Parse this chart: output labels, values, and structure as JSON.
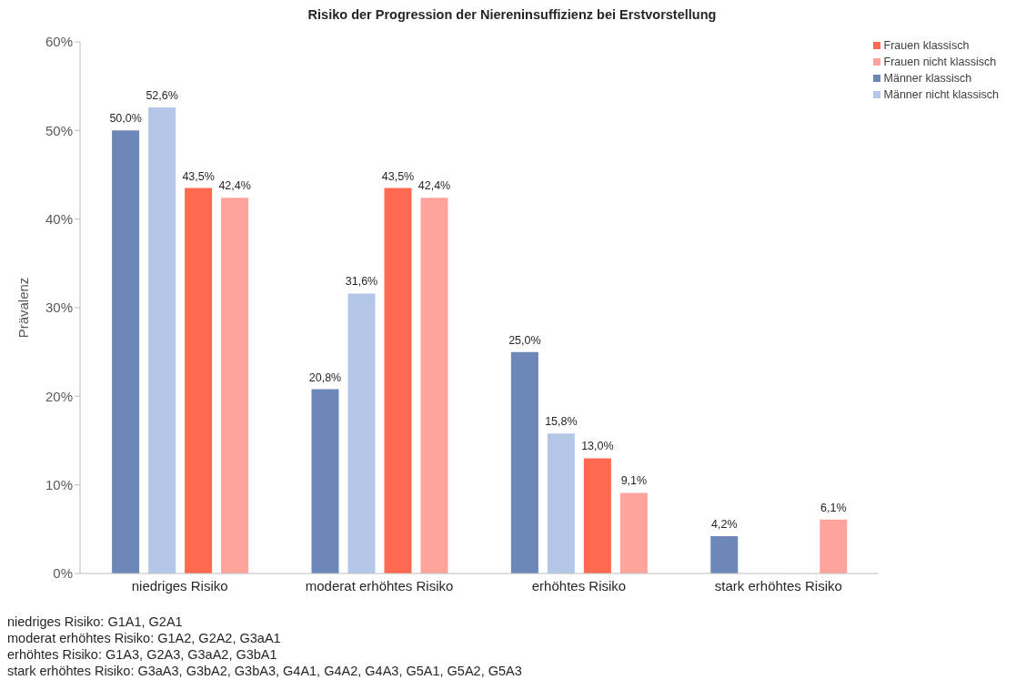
{
  "chart_data": {
    "type": "bar",
    "title": "Risiko der Progression der Niereninsuffizienz bei Erstvorstellung",
    "ylabel": "Prävalenz",
    "categories": [
      "niedriges Risiko",
      "moderat erhöhtes Risiko",
      "erhöhtes Risiko",
      "stark erhöhtes Risiko"
    ],
    "series": [
      {
        "name": "Männer klassisch",
        "color": "#6b88b8",
        "values": [
          50.0,
          20.8,
          25.0,
          4.2
        ],
        "value_labels": [
          "50,0%",
          "20,8%",
          "25,0%",
          "4,2%"
        ]
      },
      {
        "name": "Männer nicht klassisch",
        "color": "#b4c7e7",
        "values": [
          52.6,
          31.6,
          15.8,
          null
        ],
        "value_labels": [
          "52,6%",
          "31,6%",
          "15,8%",
          null
        ]
      },
      {
        "name": "Frauen klassisch",
        "color": "#fe6a4f",
        "values": [
          43.5,
          43.5,
          13.0,
          null
        ],
        "value_labels": [
          "43,5%",
          "43,5%",
          "13,0%",
          null
        ]
      },
      {
        "name": "Frauen nicht klassisch",
        "color": "#ffa49c",
        "values": [
          42.4,
          42.4,
          9.1,
          6.1
        ],
        "value_labels": [
          "42,4%",
          "42,4%",
          "9,1%",
          "6,1%"
        ]
      }
    ],
    "ylim": [
      0,
      60
    ],
    "yticks": [
      {
        "value": 0,
        "label": "0%"
      },
      {
        "value": 10,
        "label": "10%"
      },
      {
        "value": 20,
        "label": "20%"
      },
      {
        "value": 30,
        "label": "30%"
      },
      {
        "value": 40,
        "label": "40%"
      },
      {
        "value": 50,
        "label": "50%"
      },
      {
        "value": 60,
        "label": "60%"
      }
    ],
    "legend": "top right",
    "annotations": [
      "niedriges Risiko: G1A1, G2A1",
      "moderat erhöhtes Risiko: G1A2, G2A2, G3aA1",
      "erhöhtes Risiko: G1A3, G2A3, G3aA2, G3bA1",
      "stark erhöhtes Risiko: G3aA3, G3bA2, G3bA3, G4A1, G4A2, G4A3, G5A1, G5A2, G5A3"
    ]
  }
}
